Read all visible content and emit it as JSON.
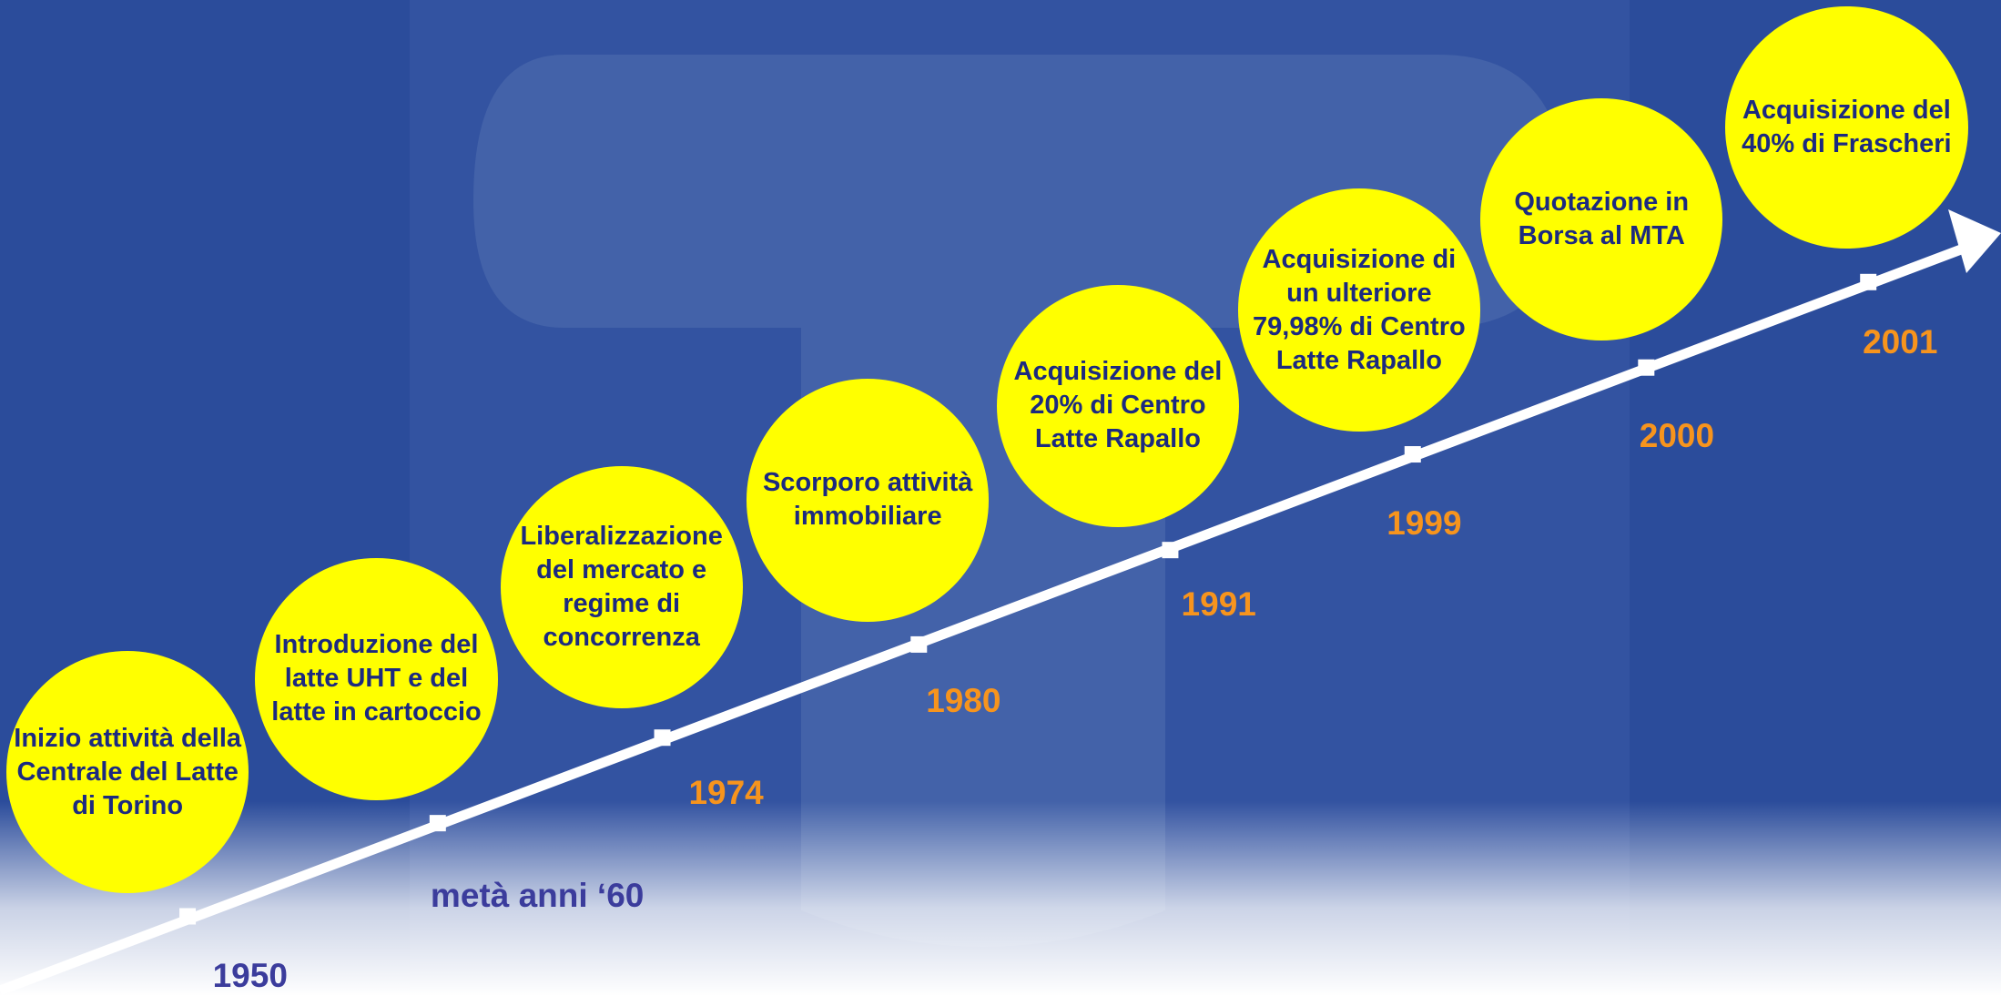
{
  "events": [
    {
      "label": "Inizio attività della Centrale del Latte di Torino",
      "year": "1950"
    },
    {
      "label": "Introduzione del latte UHT e del latte in cartoccio",
      "year": "metà anni ‘60"
    },
    {
      "label": "Liberalizzazione del mercato e regime di concorrenza",
      "year": "1974"
    },
    {
      "label": "Scorporo attività immobiliare",
      "year": "1980"
    },
    {
      "label": "Acquisizione del 20% di Centro Latte Rapallo",
      "year": "1991"
    },
    {
      "label": "Acquisizione di un ulteriore 79,98% di Centro Latte Rapallo",
      "year": "1999"
    },
    {
      "label": "Quotazione in Borsa al MTA",
      "year": "2000"
    },
    {
      "label": "Acquisizione del 40% di Frascheri",
      "year": "2001"
    }
  ]
}
